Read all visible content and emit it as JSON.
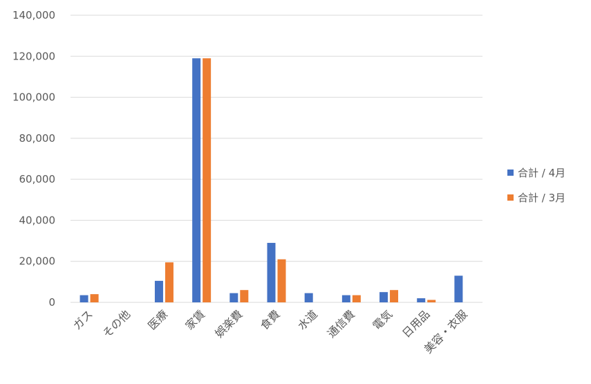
{
  "chart_data": {
    "type": "bar",
    "title": "",
    "xlabel": "",
    "ylabel": "",
    "ylim": [
      0,
      140000
    ],
    "ytick_step": 20000,
    "grid": true,
    "legend_position": "right",
    "categories": [
      "ガス",
      "その他",
      "医療",
      "家賃",
      "娯楽費",
      "食費",
      "水道",
      "通信費",
      "電気",
      "日用品",
      "美容・衣服"
    ],
    "series": [
      {
        "name": "合計 / 4月",
        "color": "#4472C4",
        "values": [
          3500,
          0,
          10500,
          119000,
          4500,
          29000,
          4500,
          3500,
          5000,
          2000,
          13000
        ]
      },
      {
        "name": "合計 / 3月",
        "color": "#ED7D31",
        "values": [
          4000,
          0,
          19500,
          119000,
          6000,
          21000,
          0,
          3500,
          6000,
          1200,
          0
        ]
      }
    ],
    "ytick_labels": [
      "0",
      "20,000",
      "40,000",
      "60,000",
      "80,000",
      "100,000",
      "120,000",
      "140,000"
    ]
  }
}
